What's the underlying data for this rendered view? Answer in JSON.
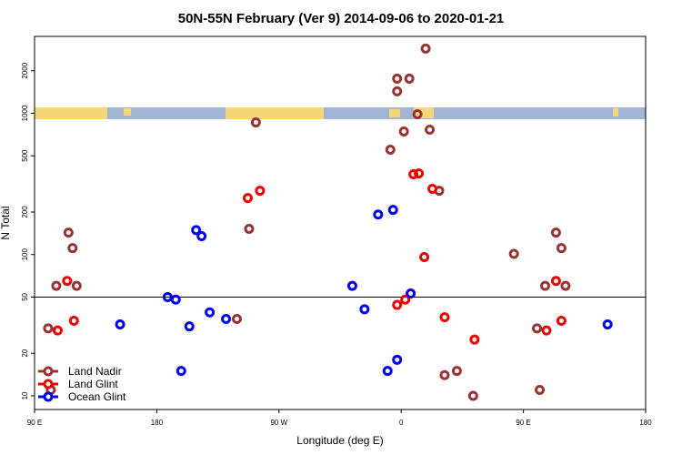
{
  "chart_data": {
    "type": "scatter",
    "title": "50N-55N February (Ver 9)   2014-09-06 to 2020-01-21",
    "x_label": "Longitude (deg E)",
    "y_label": "N Total",
    "log_y": true,
    "legend": "bottom-left",
    "hline": 50,
    "xlim": [
      90,
      540
    ],
    "ylim": [
      8,
      3500
    ],
    "xticks": [
      {
        "value": 90,
        "label": "90 E"
      },
      {
        "value": 180,
        "label": "180"
      },
      {
        "value": 270,
        "label": "90 W"
      },
      {
        "value": 360,
        "label": "0"
      },
      {
        "value": 450,
        "label": "90 E"
      },
      {
        "value": 540,
        "label": "180"
      }
    ],
    "yticks": [
      10,
      20,
      50,
      100,
      200,
      500,
      1000,
      2000
    ],
    "series": [
      {
        "name": "Land Nadir",
        "color": "#993333",
        "x": [
          100,
          102,
          106,
          115,
          118,
          121,
          239,
          248,
          253,
          352,
          357,
          357,
          362,
          366,
          372,
          378,
          381,
          388,
          392,
          401,
          413,
          443,
          460,
          462,
          466,
          474,
          478,
          481
        ],
        "values": [
          30,
          11,
          60,
          143,
          111,
          60,
          35,
          152,
          861,
          552,
          1429,
          1758,
          743,
          1758,
          985,
          2870,
          765,
          283,
          14,
          15,
          10,
          101,
          30,
          11,
          60,
          143,
          111,
          60
        ]
      },
      {
        "name": "Land Glint",
        "color": "#ee0000",
        "x": [
          107,
          114,
          119,
          247,
          256,
          357,
          363,
          369,
          373,
          377,
          383,
          392,
          414,
          467,
          474,
          478
        ],
        "values": [
          29,
          65,
          34,
          251,
          283,
          44,
          48,
          370,
          375,
          96,
          292,
          36,
          25,
          29,
          65,
          34
        ]
      },
      {
        "name": "Ocean Glint",
        "color": "#0000ee",
        "x": [
          153,
          188,
          194,
          198,
          204,
          209,
          213,
          219,
          231,
          324,
          333,
          343,
          350,
          354,
          357,
          367,
          512
        ],
        "values": [
          32,
          50,
          48,
          15,
          31,
          149,
          135,
          39,
          35,
          60,
          41,
          192,
          15,
          207,
          18,
          53,
          32
        ]
      }
    ]
  }
}
